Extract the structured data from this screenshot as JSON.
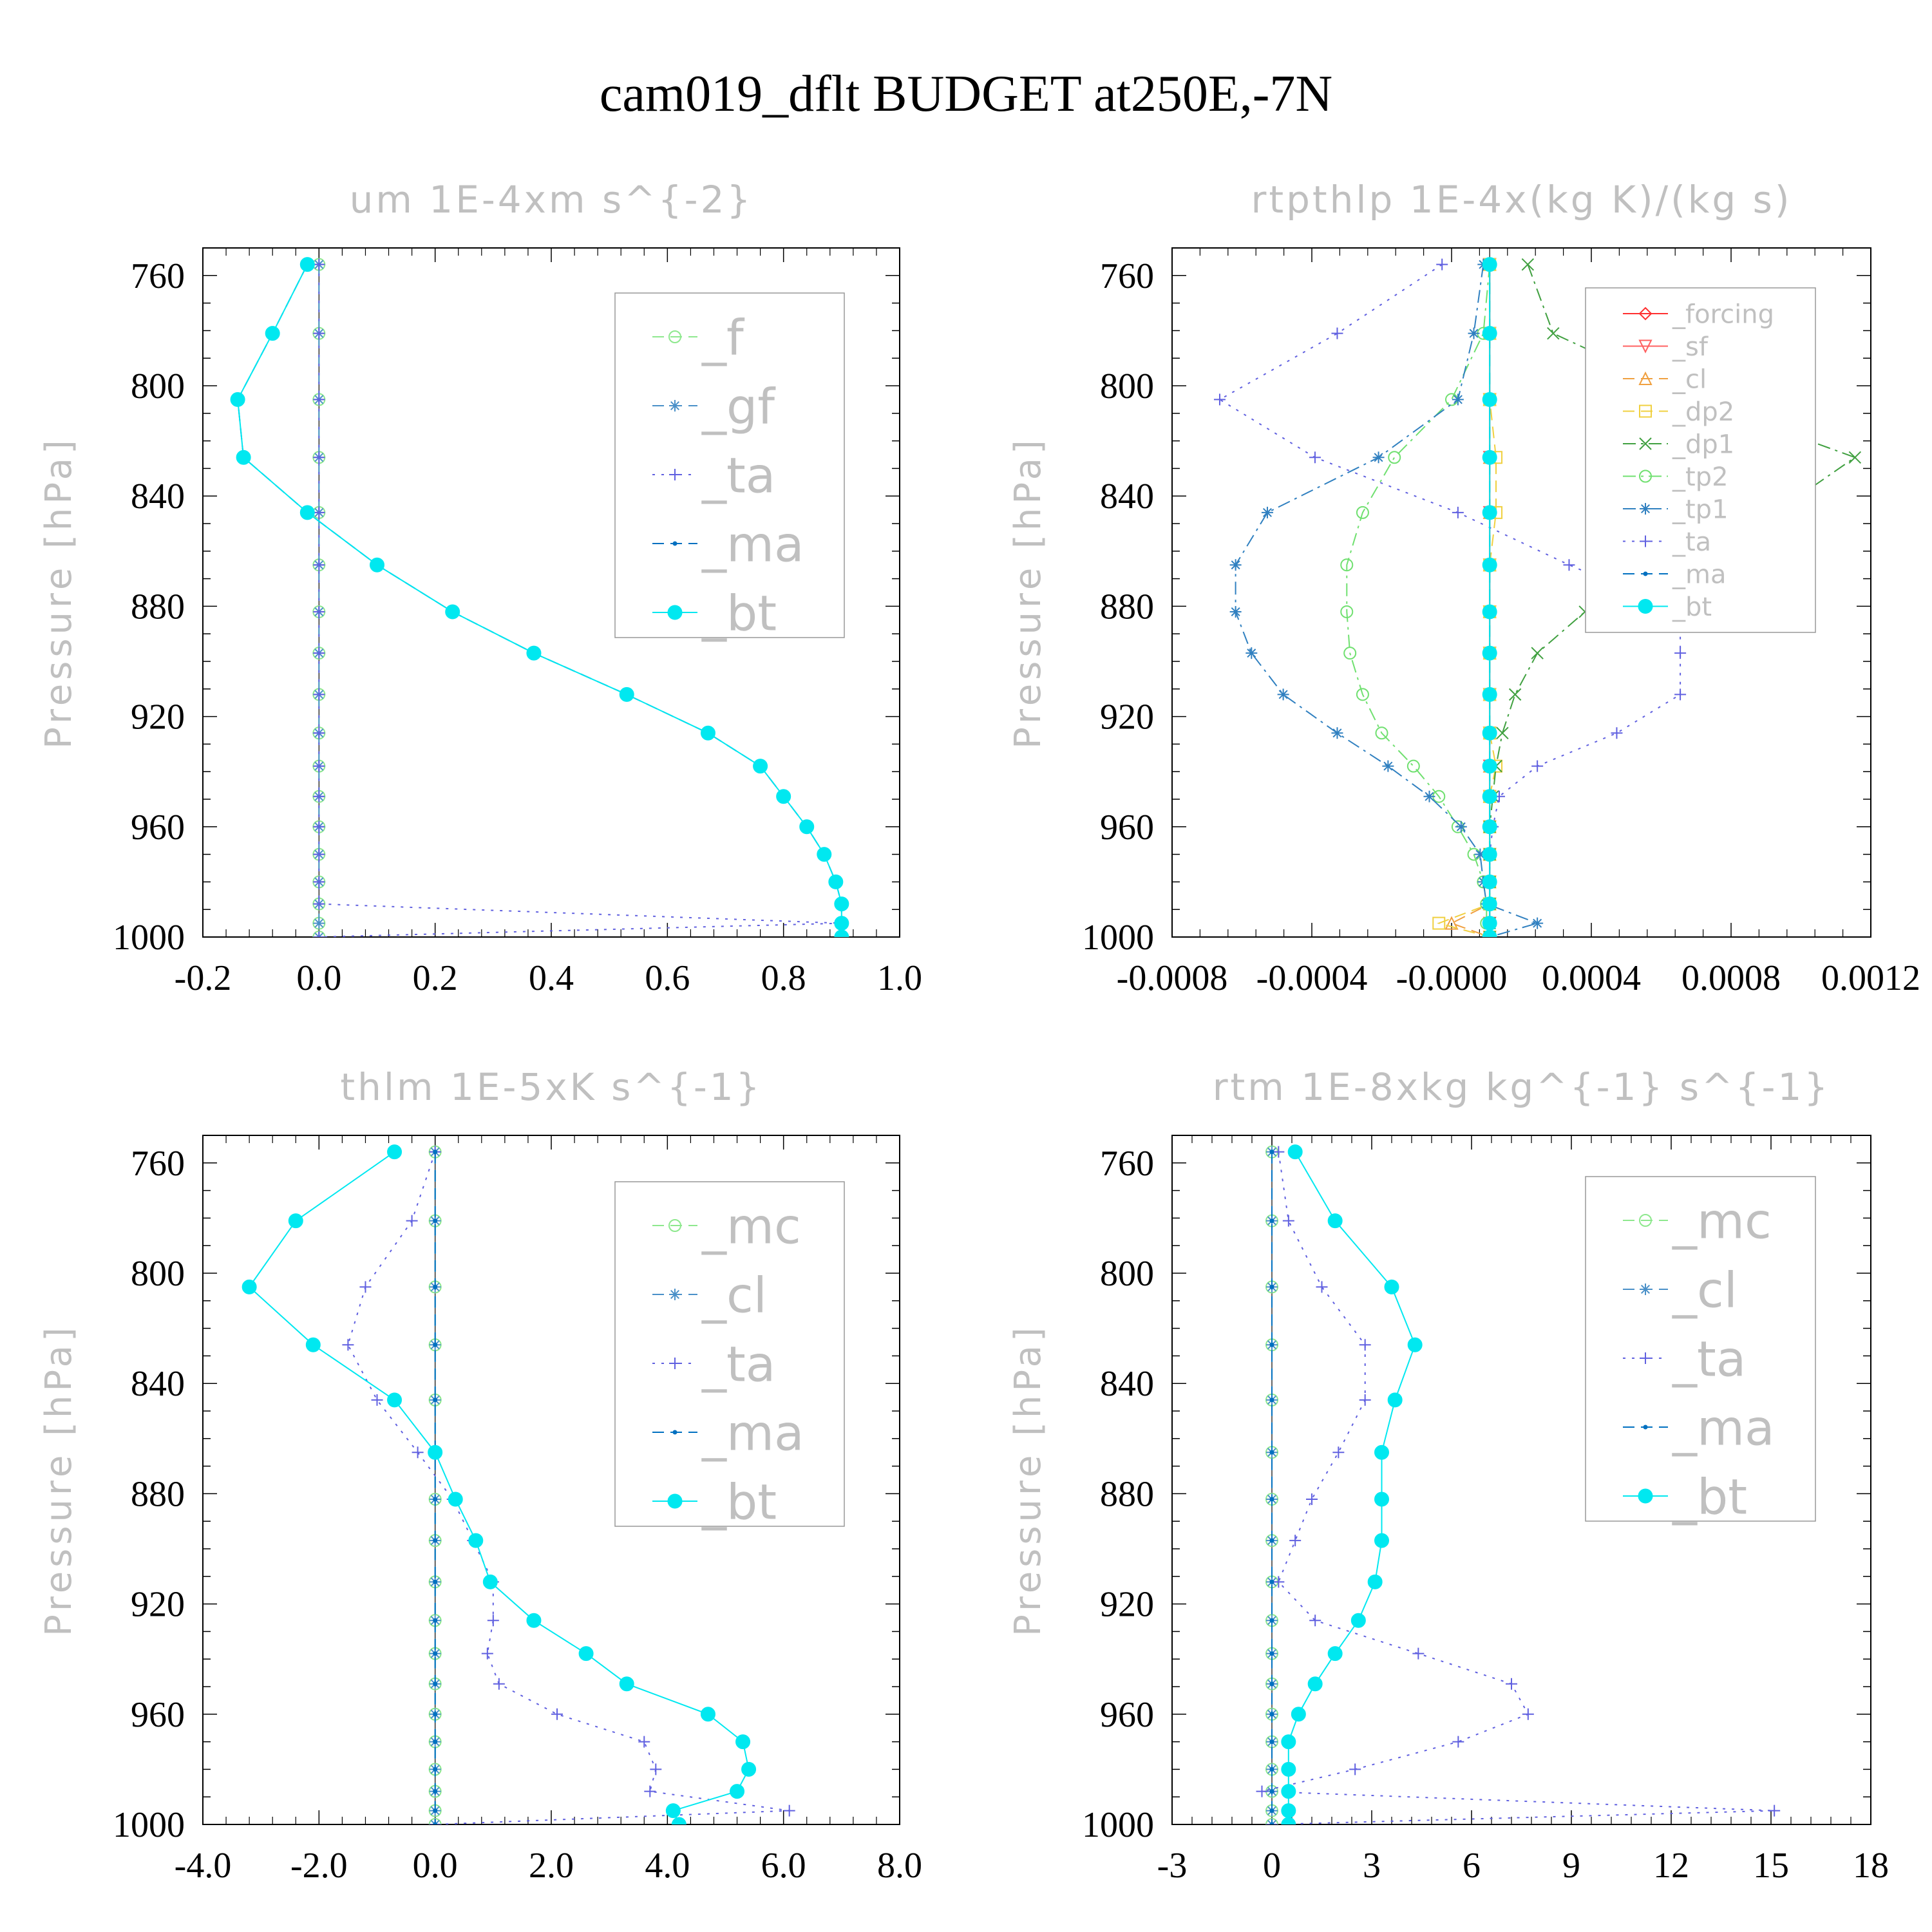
{
  "figure": {
    "title": "cam019_dflt  BUDGET at250E,-7N"
  },
  "chart_data": [
    {
      "type": "line",
      "title": "um   1E-4xm s^{-2}",
      "xlabel": "",
      "ylabel": "Pressure [hPa]",
      "xlim": [
        -0.2,
        1.0
      ],
      "xticks": [
        "-0.2",
        "0.0",
        "0.2",
        "0.4",
        "0.6",
        "0.8",
        "1.0"
      ],
      "ylim": [
        750,
        1000
      ],
      "yticks": [
        760,
        800,
        840,
        880,
        920,
        960,
        1000
      ],
      "y_inverted": true,
      "legend_position": "top-right",
      "pressure": [
        756,
        781,
        805,
        826,
        846,
        865,
        882,
        897,
        912,
        926,
        938,
        949,
        960,
        970,
        980,
        988,
        995,
        1000
      ],
      "series": [
        {
          "name": "_f",
          "color": "#8ee88e",
          "style": "dash",
          "marker": "circle",
          "values": [
            0,
            0,
            0,
            0,
            0,
            0,
            0,
            0,
            0,
            0,
            0,
            0,
            0,
            0,
            0,
            0,
            0,
            0
          ]
        },
        {
          "name": "_gf",
          "color": "#4a90c8",
          "style": "dash",
          "marker": "star",
          "values": [
            0,
            0,
            0,
            0,
            0,
            0,
            0,
            0,
            0,
            0,
            0,
            0,
            0,
            0,
            0,
            0,
            0,
            0
          ]
        },
        {
          "name": "_ta",
          "color": "#6060e0",
          "style": "dot",
          "marker": "plus",
          "values": [
            0,
            0,
            0,
            0,
            0,
            0,
            0,
            0,
            0,
            0,
            0,
            0,
            0,
            0,
            0,
            0,
            0.9,
            0
          ]
        },
        {
          "name": "_ma",
          "color": "#0070c0",
          "style": "dash",
          "marker": "dot",
          "values": [
            -0.02,
            -0.08,
            -0.14,
            -0.13,
            -0.02,
            0.1,
            0.23,
            0.37,
            0.53,
            0.67,
            0.76,
            0.8,
            0.84,
            0.87,
            0.89,
            0.9,
            0.9,
            0.9
          ]
        },
        {
          "name": "_bt",
          "color": "#00e8f0",
          "style": "solid",
          "marker": "bigdot",
          "values": [
            -0.02,
            -0.08,
            -0.14,
            -0.13,
            -0.02,
            0.1,
            0.23,
            0.37,
            0.53,
            0.67,
            0.76,
            0.8,
            0.84,
            0.87,
            0.89,
            0.9,
            0.9,
            0.9
          ]
        }
      ]
    },
    {
      "type": "line",
      "title": "rtpthlp   1E-4x(kg K)/(kg s)",
      "xlabel": "",
      "ylabel": "Pressure [hPa]",
      "xlim": [
        -0.001,
        0.0012
      ],
      "xticks": [
        "-0.0008",
        "-0.0004",
        "-0.0000",
        "0.0004",
        "0.0008",
        "0.0012"
      ],
      "ylim": [
        750,
        1000
      ],
      "yticks": [
        760,
        800,
        840,
        880,
        920,
        960,
        1000
      ],
      "y_inverted": true,
      "legend_position": "top-right",
      "pressure": [
        756,
        781,
        805,
        826,
        846,
        865,
        882,
        897,
        912,
        926,
        938,
        949,
        960,
        970,
        980,
        988,
        995,
        1000
      ],
      "series": [
        {
          "name": "_forcing",
          "color": "#ff3030",
          "style": "solid",
          "marker": "diamond",
          "values": [
            0,
            0,
            0,
            0,
            0,
            0,
            0,
            0,
            0,
            0,
            0,
            0,
            0,
            0,
            0,
            0,
            0,
            0
          ]
        },
        {
          "name": "_sf",
          "color": "#ff6060",
          "style": "solid",
          "marker": "tridown",
          "values": [
            0,
            0,
            0,
            0,
            0,
            0,
            0,
            0,
            0,
            0,
            0,
            0,
            0,
            0,
            0,
            0,
            0,
            0
          ]
        },
        {
          "name": "_cl",
          "color": "#f0a040",
          "style": "dash",
          "marker": "triangle",
          "values": [
            0,
            0,
            0,
            0,
            0,
            0,
            0,
            0,
            0,
            0,
            0,
            0,
            0,
            0,
            0,
            0,
            -0.00012,
            0
          ]
        },
        {
          "name": "_dp2",
          "color": "#f0d040",
          "style": "dash",
          "marker": "square",
          "values": [
            0,
            0,
            0,
            2e-05,
            2e-05,
            0,
            0,
            0,
            0,
            0,
            2e-05,
            0,
            0,
            0,
            0,
            0,
            -0.00016,
            0
          ]
        },
        {
          "name": "_dp1",
          "color": "#40a040",
          "style": "dashdot",
          "marker": "cross",
          "values": [
            0.00012,
            0.0002,
            0.00065,
            0.00115,
            0.0009,
            0.00055,
            0.0003,
            0.00015,
            8e-05,
            4e-05,
            2e-05,
            1e-05,
            0,
            0,
            0,
            0,
            0,
            0
          ]
        },
        {
          "name": "_tp2",
          "color": "#70e070",
          "style": "dashdot",
          "marker": "circle",
          "values": [
            0,
            -2e-05,
            -0.00012,
            -0.0003,
            -0.0004,
            -0.00045,
            -0.00045,
            -0.00044,
            -0.0004,
            -0.00034,
            -0.00024,
            -0.00016,
            -0.0001,
            -5e-05,
            -2e-05,
            -1e-05,
            -1e-05,
            0
          ]
        },
        {
          "name": "_tp1",
          "color": "#3080c0",
          "style": "dashdot",
          "marker": "star",
          "values": [
            -2e-05,
            -5e-05,
            -0.0001,
            -0.00035,
            -0.0007,
            -0.0008,
            -0.0008,
            -0.00075,
            -0.00065,
            -0.00048,
            -0.00032,
            -0.00019,
            -9e-05,
            -3e-05,
            -2e-05,
            -1e-05,
            0.00015,
            0
          ]
        },
        {
          "name": "_ta",
          "color": "#6060e0",
          "style": "dot",
          "marker": "plus",
          "values": [
            -0.00015,
            -0.00048,
            -0.00085,
            -0.00055,
            -0.0001,
            0.00025,
            0.0006,
            0.0006,
            0.0006,
            0.0004,
            0.00015,
            3e-05,
            1e-05,
            0,
            0,
            0,
            0,
            0
          ]
        },
        {
          "name": "_ma",
          "color": "#0070c0",
          "style": "dash",
          "marker": "dot",
          "values": [
            0,
            0,
            0,
            0,
            0,
            0,
            0,
            0,
            0,
            0,
            0,
            0,
            0,
            0,
            0,
            0,
            0,
            0
          ]
        },
        {
          "name": "_bt",
          "color": "#00e8f0",
          "style": "solid",
          "marker": "bigdot",
          "values": [
            0,
            0,
            0,
            0,
            0,
            0,
            0,
            0,
            0,
            0,
            0,
            0,
            0,
            0,
            0,
            0,
            0,
            0
          ]
        }
      ]
    },
    {
      "type": "line",
      "title": "thlm   1E-5xK s^{-1}",
      "xlabel": "",
      "ylabel": "Pressure [hPa]",
      "xlim": [
        -4.0,
        8.0
      ],
      "xticks": [
        "-4.0",
        "-2.0",
        "0.0",
        "2.0",
        "4.0",
        "6.0",
        "8.0"
      ],
      "ylim": [
        750,
        1000
      ],
      "yticks": [
        760,
        800,
        840,
        880,
        920,
        960,
        1000
      ],
      "y_inverted": true,
      "legend_position": "top-right",
      "pressure": [
        756,
        781,
        805,
        826,
        846,
        865,
        882,
        897,
        912,
        926,
        938,
        949,
        960,
        970,
        980,
        988,
        995,
        1000
      ],
      "series": [
        {
          "name": "_mc",
          "color": "#8ee88e",
          "style": "dash",
          "marker": "circle",
          "values": [
            0,
            0,
            0,
            0,
            0,
            0,
            0,
            0,
            0,
            0,
            0,
            0,
            0,
            0,
            0,
            0,
            0,
            0
          ]
        },
        {
          "name": "_cl",
          "color": "#4a90c8",
          "style": "dash",
          "marker": "star",
          "values": [
            0,
            0,
            0,
            0,
            0,
            0,
            0,
            0,
            0,
            0,
            0,
            0,
            0,
            0,
            0,
            0,
            0,
            0
          ]
        },
        {
          "name": "_ta",
          "color": "#6060e0",
          "style": "dot",
          "marker": "plus",
          "values": [
            0,
            -0.4,
            -1.2,
            -1.5,
            -1.0,
            -0.3,
            0.3,
            0.65,
            1.0,
            1.0,
            0.9,
            1.1,
            2.1,
            3.6,
            3.8,
            3.7,
            6.1,
            0
          ]
        },
        {
          "name": "_ma",
          "color": "#0070c0",
          "style": "dash",
          "marker": "dot",
          "values": [
            0,
            0,
            0,
            0,
            0,
            0,
            0,
            0,
            0,
            0,
            0,
            0,
            0,
            0,
            0,
            0,
            0,
            0
          ]
        },
        {
          "name": "_bt",
          "color": "#00e8f0",
          "style": "solid",
          "marker": "bigdot",
          "values": [
            -0.7,
            -2.4,
            -3.2,
            -2.1,
            -0.7,
            0,
            0.35,
            0.7,
            0.95,
            1.7,
            2.6,
            3.3,
            4.7,
            5.3,
            5.4,
            5.2,
            4.1,
            4.2
          ]
        }
      ]
    },
    {
      "type": "line",
      "title": "rtm   1E-8xkg kg^{-1} s^{-1}",
      "xlabel": "",
      "ylabel": "Pressure [hPa]",
      "xlim": [
        -3,
        18
      ],
      "xticks": [
        "-3",
        "0",
        "3",
        "6",
        "9",
        "12",
        "15",
        "18"
      ],
      "ylim": [
        750,
        1000
      ],
      "yticks": [
        760,
        800,
        840,
        880,
        920,
        960,
        1000
      ],
      "y_inverted": true,
      "legend_position": "top-right",
      "pressure": [
        756,
        781,
        805,
        826,
        846,
        865,
        882,
        897,
        912,
        926,
        938,
        949,
        960,
        970,
        980,
        988,
        995,
        1000
      ],
      "series": [
        {
          "name": "_mc",
          "color": "#8ee88e",
          "style": "dash",
          "marker": "circle",
          "values": [
            0,
            0,
            0,
            0,
            0,
            0,
            0,
            0,
            0,
            0,
            0,
            0,
            0,
            0,
            0,
            0,
            0,
            0
          ]
        },
        {
          "name": "_cl",
          "color": "#4a90c8",
          "style": "dash",
          "marker": "star",
          "values": [
            0,
            0,
            0,
            0,
            0,
            0,
            0,
            0,
            0,
            0,
            0,
            0,
            0,
            0,
            0,
            0,
            0,
            0
          ]
        },
        {
          "name": "_ta",
          "color": "#6060e0",
          "style": "dot",
          "marker": "plus",
          "values": [
            0.2,
            0.5,
            1.5,
            2.8,
            2.8,
            2.0,
            1.2,
            0.7,
            0.2,
            1.3,
            4.4,
            7.2,
            7.7,
            5.6,
            2.5,
            -0.3,
            15.1,
            0
          ]
        },
        {
          "name": "_ma",
          "color": "#0070c0",
          "style": "dash",
          "marker": "dot",
          "values": [
            0,
            0,
            0,
            0,
            0,
            0,
            0,
            0,
            0,
            0,
            0,
            0,
            0,
            0,
            0,
            0,
            0,
            0
          ]
        },
        {
          "name": "_bt",
          "color": "#00e8f0",
          "style": "solid",
          "marker": "bigdot",
          "values": [
            0.7,
            1.9,
            3.6,
            4.3,
            3.7,
            3.3,
            3.3,
            3.3,
            3.1,
            2.6,
            1.9,
            1.3,
            0.8,
            0.5,
            0.5,
            0.5,
            0.5,
            0.5
          ]
        }
      ]
    }
  ]
}
